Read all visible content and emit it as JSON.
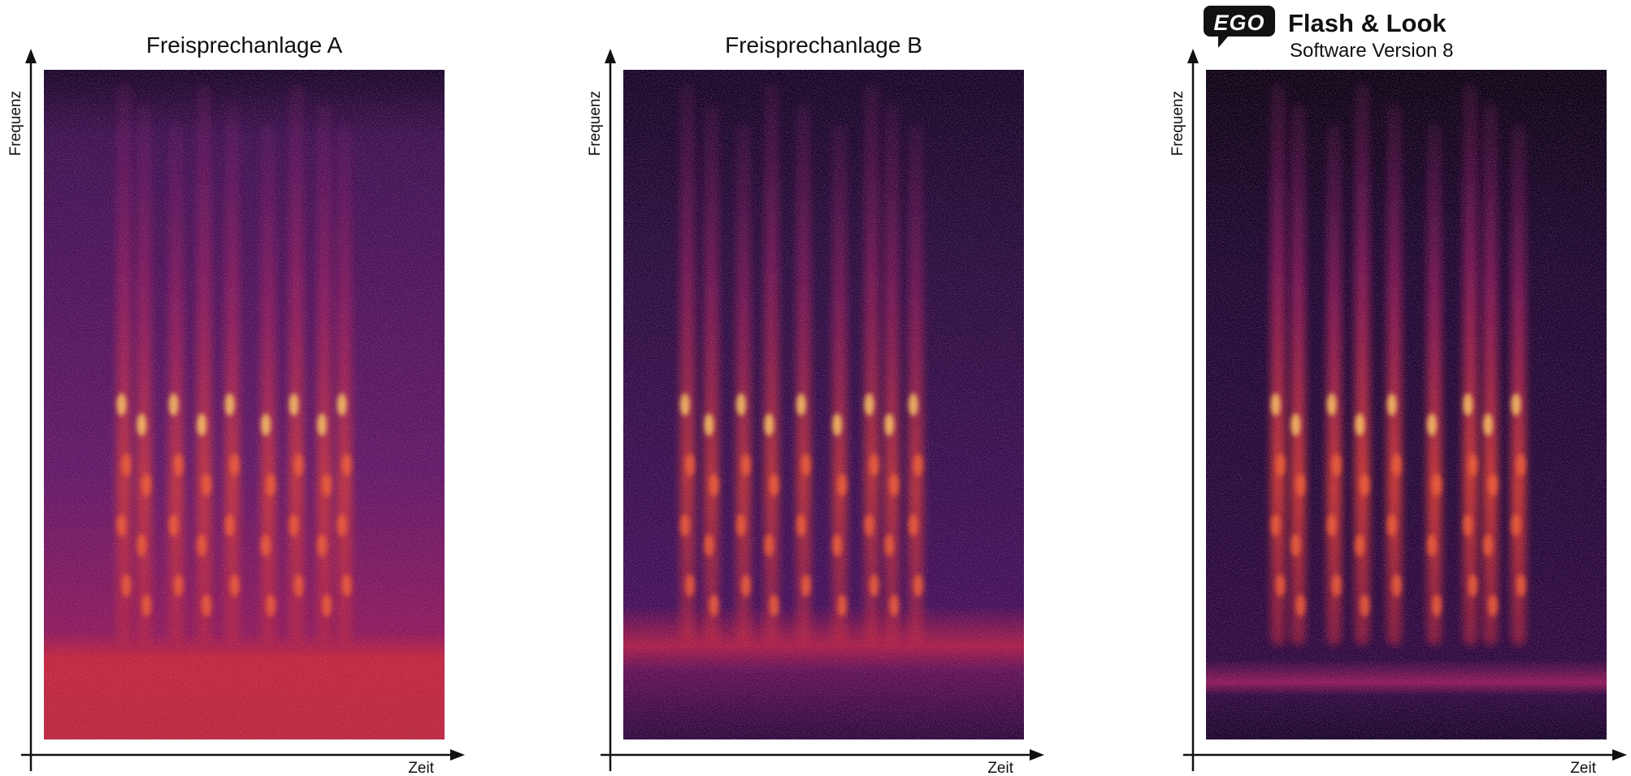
{
  "panels": [
    {
      "title": "Freisprechanlage A",
      "y_axis_label": "Frequenz",
      "x_axis_label": "Zeit"
    },
    {
      "title": "Freisprechanlage B",
      "y_axis_label": "Frequenz",
      "x_axis_label": "Zeit"
    },
    {
      "logo": "EGO",
      "title": "Flash & Look",
      "subtitle": "Software Version 8",
      "y_axis_label": "Frequenz",
      "x_axis_label": "Zeit"
    }
  ]
}
